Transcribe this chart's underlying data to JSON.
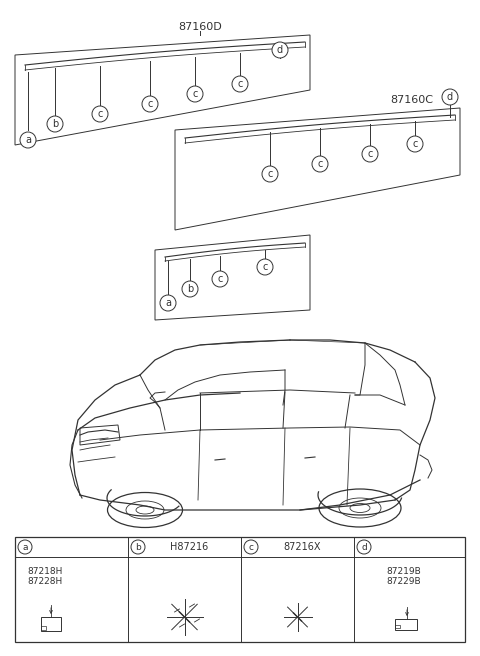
{
  "title_top": "87160D",
  "title_right": "87160C",
  "bg_color": "#ffffff",
  "line_color": "#333333",
  "legend": {
    "col_a_label": "a",
    "col_b_label": "b",
    "col_b_text": "H87216",
    "col_c_label": "c",
    "col_c_text": "87216X",
    "col_d_label": "d",
    "part_a": [
      "87218H",
      "87228H"
    ],
    "part_d": [
      "87219B",
      "87229B"
    ]
  }
}
